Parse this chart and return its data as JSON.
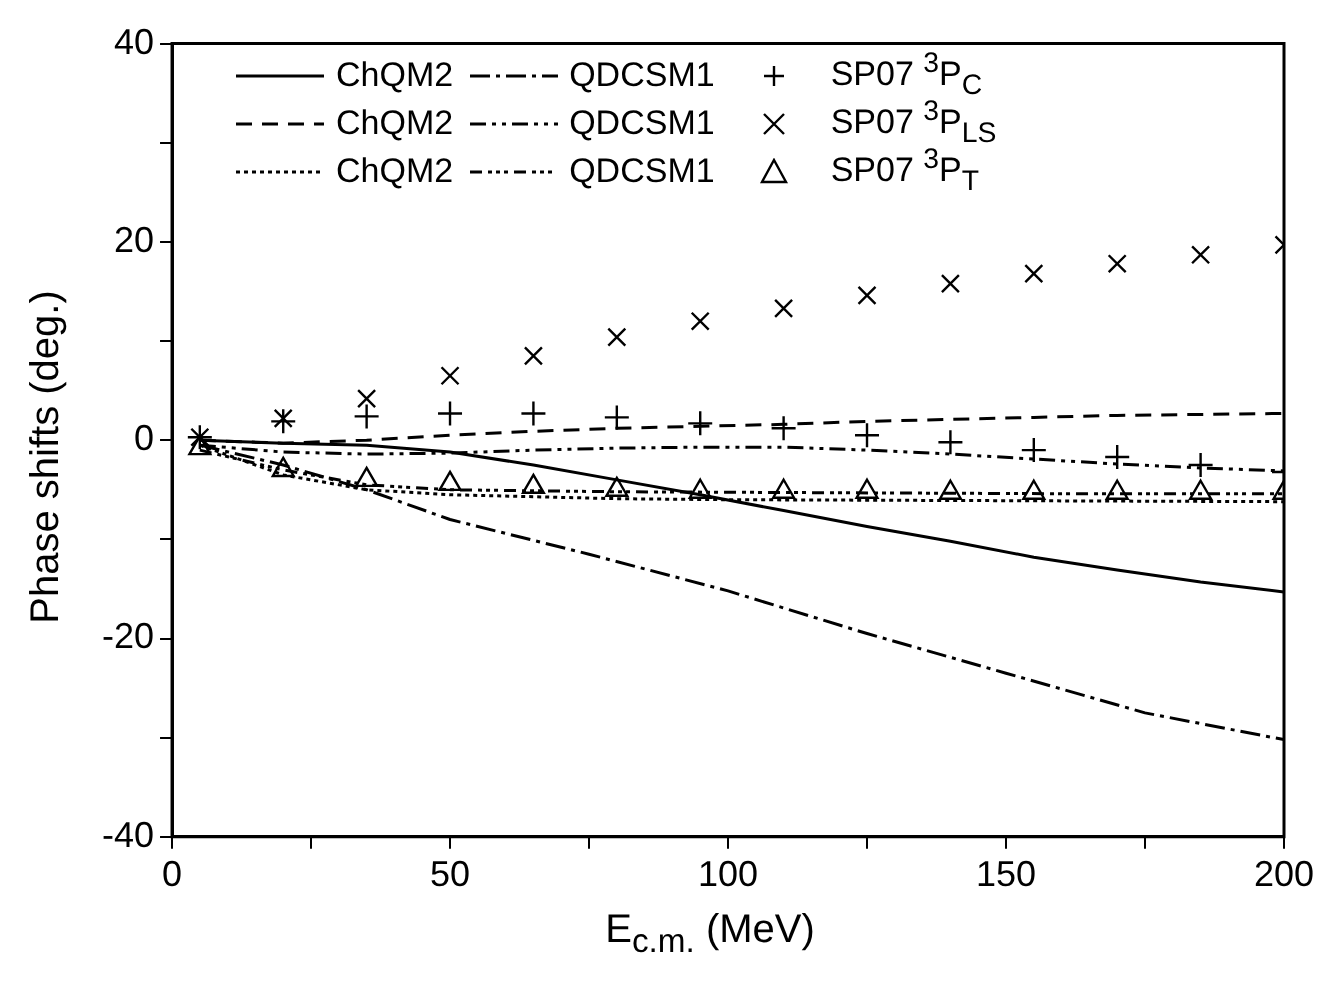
{
  "chart_data": {
    "type": "line",
    "xlabel": "E$_{c.m.}$ (MeV)",
    "ylabel": "Phase shifts (deg.)",
    "xlim": [
      0,
      200
    ],
    "xticks": [
      0,
      {
        "value": 25,
        "label": null
      },
      50,
      {
        "value": 75,
        "label": null
      },
      100,
      {
        "value": 125,
        "label": null
      },
      150,
      {
        "value": 175,
        "label": null
      },
      200
    ],
    "ylim": [
      -40,
      40
    ],
    "yticks": [
      -40,
      {
        "value": -30,
        "label": null
      },
      -20,
      {
        "value": -10,
        "label": null
      },
      0,
      {
        "value": 10,
        "label": null
      },
      20,
      {
        "value": 30,
        "label": null
      },
      40
    ],
    "grid": false,
    "legend": "top left",
    "series": [
      {
        "name": "ChQM2",
        "type": "line",
        "line_style": "solid",
        "marker": "none",
        "color": "#000000",
        "x": [
          5,
          20,
          35,
          50,
          65,
          80,
          95,
          110,
          125,
          140,
          155,
          170,
          185,
          200
        ],
        "values": [
          0,
          -0.3,
          -0.5,
          -1.2,
          -2.5,
          -4.0,
          -5.5,
          -7.1,
          -8.7,
          -10.2,
          -11.8,
          -13.1,
          -14.3,
          -15.3
        ]
      },
      {
        "name": "ChQM2",
        "type": "line",
        "line_style": "dashed",
        "marker": "none",
        "color": "#000000",
        "x": [
          5,
          20,
          35,
          50,
          65,
          80,
          95,
          110,
          125,
          140,
          155,
          170,
          185,
          200
        ],
        "values": [
          0,
          -0.3,
          0,
          0.5,
          0.9,
          1.2,
          1.4,
          1.6,
          1.9,
          2.1,
          2.3,
          2.5,
          2.6,
          2.7
        ]
      },
      {
        "name": "ChQM2",
        "type": "line",
        "line_style": "dotted",
        "marker": "none",
        "color": "#000000",
        "x": [
          5,
          20,
          35,
          50,
          65,
          80,
          100,
          150,
          200
        ],
        "values": [
          -0.5,
          -3.5,
          -5.0,
          -5.5,
          -5.7,
          -5.9,
          -6.0,
          -6.1,
          -6.2
        ]
      },
      {
        "name": "QDCSM1",
        "type": "line",
        "line_style": "dashdot",
        "marker": "none",
        "color": "#000000",
        "x": [
          5,
          20,
          35,
          50,
          75,
          100,
          125,
          150,
          175,
          200
        ],
        "values": [
          -0.5,
          -2.5,
          -5.0,
          -8.0,
          -11.5,
          -15.2,
          -19.5,
          -23.5,
          -27.5,
          -30.2
        ]
      },
      {
        "name": "QDCSM1",
        "type": "line",
        "line_style": "dashdotdot",
        "marker": "none",
        "color": "#000000",
        "x": [
          5,
          20,
          35,
          50,
          65,
          80,
          95,
          110,
          125,
          140,
          155,
          170,
          185,
          200
        ],
        "values": [
          -0.5,
          -1.2,
          -1.4,
          -1.3,
          -1.0,
          -0.8,
          -0.7,
          -0.7,
          -1.0,
          -1.4,
          -1.9,
          -2.4,
          -2.8,
          -3.1
        ]
      },
      {
        "name": "QDCSM1",
        "type": "line",
        "line_style": "dashdotdotdot",
        "marker": "none",
        "color": "#000000",
        "x": [
          5,
          20,
          35,
          50,
          80,
          120,
          160,
          200
        ],
        "values": [
          -1.0,
          -3.0,
          -4.5,
          -5.0,
          -5.2,
          -5.3,
          -5.4,
          -5.4
        ]
      },
      {
        "name": "SP07 $^{3}$P$_{C}$",
        "type": "scatter",
        "marker": "plus",
        "color": "#000000",
        "x": [
          5,
          20,
          35,
          50,
          65,
          80,
          95,
          110,
          125,
          140,
          155,
          170,
          185,
          200
        ],
        "values": [
          0.3,
          1.9,
          2.4,
          2.7,
          2.7,
          2.3,
          1.7,
          1.2,
          0.5,
          -0.2,
          -1.0,
          -1.7,
          -2.5,
          -3.2
        ]
      },
      {
        "name": "SP07 $^{3}$P$_{LS}$",
        "type": "scatter",
        "marker": "cross",
        "color": "#000000",
        "x": [
          5,
          20,
          35,
          50,
          65,
          80,
          95,
          110,
          125,
          140,
          155,
          170,
          185,
          200
        ],
        "values": [
          0.3,
          2.2,
          4.2,
          6.5,
          8.5,
          10.4,
          12.0,
          13.3,
          14.6,
          15.8,
          16.8,
          17.8,
          18.7,
          19.7
        ]
      },
      {
        "name": "SP07 $^{3}$P$_{T}$",
        "type": "scatter",
        "marker": "triangle",
        "color": "#000000",
        "x": [
          5,
          20,
          35,
          50,
          65,
          80,
          95,
          110,
          125,
          140,
          155,
          170,
          185,
          200
        ],
        "values": [
          -0.8,
          -3.0,
          -4.0,
          -4.4,
          -4.7,
          -5.0,
          -5.2,
          -5.2,
          -5.2,
          -5.3,
          -5.3,
          -5.3,
          -5.3,
          -5.3
        ]
      }
    ]
  }
}
